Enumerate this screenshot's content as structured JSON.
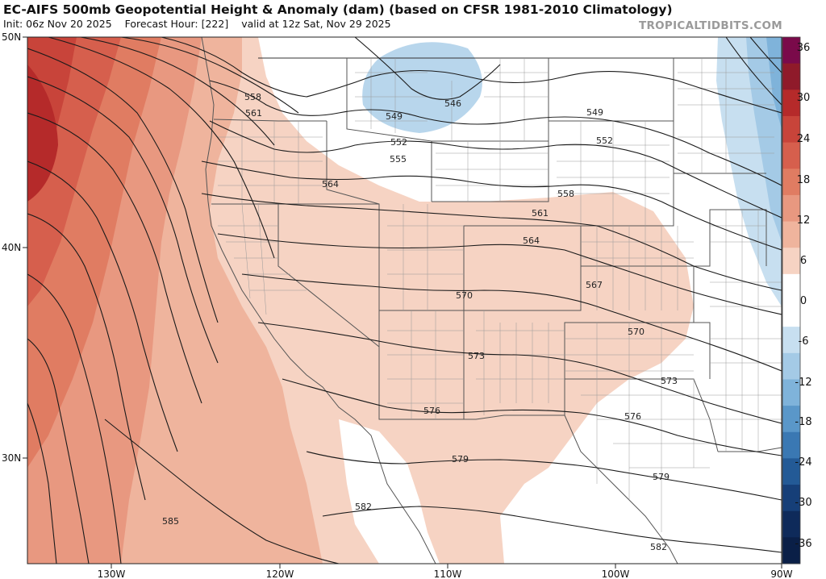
{
  "header": {
    "title": "EC-AIFS 500mb Geopotential Height & Anomaly (dam) (based on CFSR 1981-2010 Climatology)",
    "init": "Init: 06z Nov 20 2025",
    "forecast_hour": "Forecast Hour: [222]",
    "valid": "valid at 12z Sat, Nov 29 2025",
    "credit": "TROPICALTIDBITS.COM"
  },
  "map": {
    "lat_labels": [
      "50N",
      "40N",
      "30N"
    ],
    "lon_labels": [
      "130W",
      "120W",
      "110W",
      "100W",
      "90W"
    ],
    "contour_labels": [
      "546",
      "549",
      "549",
      "552",
      "552",
      "555",
      "558",
      "558",
      "561",
      "561",
      "564",
      "564",
      "567",
      "570",
      "570",
      "573",
      "573",
      "576",
      "576",
      "579",
      "579",
      "582",
      "582",
      "585"
    ]
  },
  "colorbar": {
    "labels": [
      "36",
      "30",
      "24",
      "18",
      "12",
      "6",
      "0",
      "-6",
      "-12",
      "-18",
      "-24",
      "-30",
      "-36"
    ],
    "colors": [
      "#7a0a4a",
      "#8f1a2a",
      "#b52a2a",
      "#c8443a",
      "#d65f4d",
      "#e07c62",
      "#e89880",
      "#efb49d",
      "#f6d3c3",
      "#ffffff",
      "#ffffff",
      "#c7dff0",
      "#a4cae6",
      "#7fb3da",
      "#5a97c9",
      "#3a78b3",
      "#235a96",
      "#163f78",
      "#0e2a5a",
      "#0a1f47"
    ]
  },
  "colors": {
    "anom_pos_strong": "#b52a2a",
    "anom_pos_weak": "#f6d3c3",
    "anom_neg": "#9ec5e3",
    "land_lines": "#777777",
    "contour": "#1a1a1a"
  }
}
